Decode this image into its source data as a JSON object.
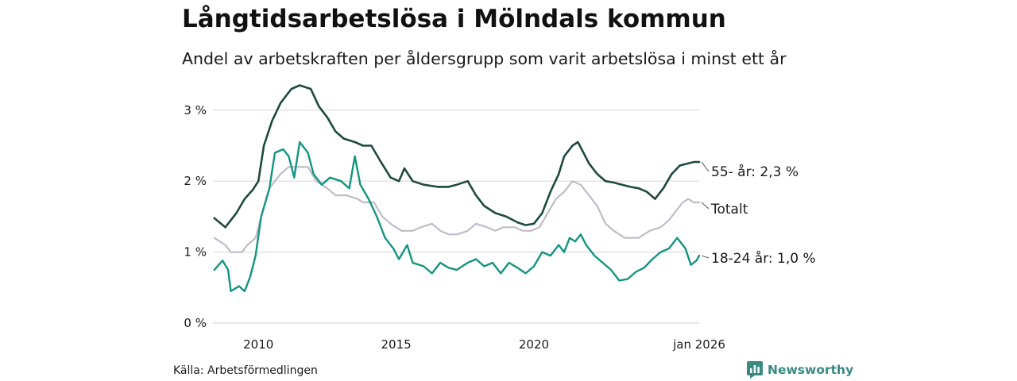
{
  "title": "Långtidsarbetslösa i Mölndals kommun",
  "subtitle": "Andel av arbetskraften per åldersgrupp som varit arbetslösa i minst ett år",
  "source": "Källa: Arbetsförmedlingen",
  "brand": "Newsworthy",
  "colors": {
    "series_55": "#1e4a3f",
    "series_total": "#c0bcc9",
    "series_18_24": "#149481",
    "grid": "#dcdcdc",
    "brand": "#3a8a80"
  },
  "chart_data": {
    "type": "line",
    "title": "Långtidsarbetslösa i Mölndals kommun",
    "xlabel": "",
    "ylabel": "",
    "xlim": [
      2008.35,
      2026.0
    ],
    "ylim": [
      0,
      3.3
    ],
    "grid": true,
    "y_ticks": [
      {
        "value": 0,
        "label": "0 %"
      },
      {
        "value": 1,
        "label": "1 %"
      },
      {
        "value": 2,
        "label": "2 %"
      },
      {
        "value": 3,
        "label": "3 %"
      }
    ],
    "x_ticks": [
      {
        "value": 2010,
        "label": "2010"
      },
      {
        "value": 2015,
        "label": "2015"
      },
      {
        "value": 2020,
        "label": "2020"
      },
      {
        "value": 2026,
        "label": "jan 2026"
      }
    ],
    "series": [
      {
        "key": "s55",
        "name": "55- år",
        "end_label": "55- år: 2,3 %",
        "points": [
          [
            2008.4,
            1.48
          ],
          [
            2008.8,
            1.35
          ],
          [
            2009.2,
            1.55
          ],
          [
            2009.5,
            1.75
          ],
          [
            2009.8,
            1.88
          ],
          [
            2010.0,
            2.0
          ],
          [
            2010.2,
            2.5
          ],
          [
            2010.5,
            2.85
          ],
          [
            2010.8,
            3.1
          ],
          [
            2011.2,
            3.3
          ],
          [
            2011.5,
            3.35
          ],
          [
            2011.9,
            3.3
          ],
          [
            2012.2,
            3.05
          ],
          [
            2012.5,
            2.9
          ],
          [
            2012.8,
            2.7
          ],
          [
            2013.1,
            2.6
          ],
          [
            2013.5,
            2.55
          ],
          [
            2013.8,
            2.5
          ],
          [
            2014.1,
            2.5
          ],
          [
            2014.4,
            2.3
          ],
          [
            2014.8,
            2.05
          ],
          [
            2015.1,
            2.0
          ],
          [
            2015.3,
            2.18
          ],
          [
            2015.6,
            2.0
          ],
          [
            2016.0,
            1.95
          ],
          [
            2016.5,
            1.92
          ],
          [
            2016.9,
            1.92
          ],
          [
            2017.2,
            1.95
          ],
          [
            2017.6,
            2.0
          ],
          [
            2017.9,
            1.8
          ],
          [
            2018.2,
            1.65
          ],
          [
            2018.6,
            1.55
          ],
          [
            2019.0,
            1.5
          ],
          [
            2019.4,
            1.42
          ],
          [
            2019.7,
            1.38
          ],
          [
            2020.0,
            1.4
          ],
          [
            2020.3,
            1.55
          ],
          [
            2020.6,
            1.85
          ],
          [
            2020.9,
            2.1
          ],
          [
            2021.1,
            2.35
          ],
          [
            2021.4,
            2.5
          ],
          [
            2021.6,
            2.55
          ],
          [
            2021.8,
            2.4
          ],
          [
            2022.0,
            2.25
          ],
          [
            2022.3,
            2.1
          ],
          [
            2022.6,
            2.0
          ],
          [
            2022.9,
            1.98
          ],
          [
            2023.2,
            1.95
          ],
          [
            2023.5,
            1.92
          ],
          [
            2023.8,
            1.9
          ],
          [
            2024.1,
            1.85
          ],
          [
            2024.4,
            1.75
          ],
          [
            2024.7,
            1.9
          ],
          [
            2025.0,
            2.1
          ],
          [
            2025.3,
            2.22
          ],
          [
            2025.6,
            2.25
          ],
          [
            2025.8,
            2.27
          ],
          [
            2026.0,
            2.27
          ]
        ]
      },
      {
        "key": "total",
        "name": "Totalt",
        "end_label": "Totalt",
        "points": [
          [
            2008.4,
            1.2
          ],
          [
            2008.8,
            1.1
          ],
          [
            2009.0,
            1.0
          ],
          [
            2009.4,
            1.0
          ],
          [
            2009.6,
            1.1
          ],
          [
            2009.9,
            1.2
          ],
          [
            2010.1,
            1.5
          ],
          [
            2010.4,
            1.9
          ],
          [
            2010.8,
            2.1
          ],
          [
            2011.1,
            2.2
          ],
          [
            2011.4,
            2.2
          ],
          [
            2011.8,
            2.2
          ],
          [
            2012.1,
            2.0
          ],
          [
            2012.5,
            1.9
          ],
          [
            2012.8,
            1.8
          ],
          [
            2013.2,
            1.8
          ],
          [
            2013.6,
            1.75
          ],
          [
            2013.8,
            1.7
          ],
          [
            2014.2,
            1.7
          ],
          [
            2014.5,
            1.5
          ],
          [
            2014.8,
            1.4
          ],
          [
            2015.2,
            1.3
          ],
          [
            2015.6,
            1.3
          ],
          [
            2015.9,
            1.35
          ],
          [
            2016.3,
            1.4
          ],
          [
            2016.6,
            1.3
          ],
          [
            2016.9,
            1.25
          ],
          [
            2017.2,
            1.25
          ],
          [
            2017.6,
            1.3
          ],
          [
            2017.9,
            1.4
          ],
          [
            2018.3,
            1.35
          ],
          [
            2018.6,
            1.3
          ],
          [
            2018.9,
            1.35
          ],
          [
            2019.3,
            1.35
          ],
          [
            2019.6,
            1.3
          ],
          [
            2019.9,
            1.3
          ],
          [
            2020.2,
            1.35
          ],
          [
            2020.5,
            1.55
          ],
          [
            2020.8,
            1.75
          ],
          [
            2021.1,
            1.85
          ],
          [
            2021.4,
            2.0
          ],
          [
            2021.7,
            1.95
          ],
          [
            2022.0,
            1.8
          ],
          [
            2022.3,
            1.65
          ],
          [
            2022.6,
            1.4
          ],
          [
            2022.9,
            1.3
          ],
          [
            2023.3,
            1.2
          ],
          [
            2023.8,
            1.2
          ],
          [
            2024.2,
            1.3
          ],
          [
            2024.6,
            1.35
          ],
          [
            2024.9,
            1.45
          ],
          [
            2025.2,
            1.6
          ],
          [
            2025.4,
            1.7
          ],
          [
            2025.6,
            1.75
          ],
          [
            2025.8,
            1.7
          ],
          [
            2026.0,
            1.7
          ]
        ]
      },
      {
        "key": "s1824",
        "name": "18-24 år",
        "end_label": "18-24 år: 1,0 %",
        "points": [
          [
            2008.4,
            0.75
          ],
          [
            2008.7,
            0.88
          ],
          [
            2008.9,
            0.75
          ],
          [
            2009.0,
            0.45
          ],
          [
            2009.3,
            0.52
          ],
          [
            2009.5,
            0.45
          ],
          [
            2009.7,
            0.65
          ],
          [
            2009.9,
            0.95
          ],
          [
            2010.1,
            1.5
          ],
          [
            2010.4,
            1.9
          ],
          [
            2010.6,
            2.4
          ],
          [
            2010.9,
            2.45
          ],
          [
            2011.1,
            2.35
          ],
          [
            2011.3,
            2.05
          ],
          [
            2011.5,
            2.55
          ],
          [
            2011.8,
            2.4
          ],
          [
            2012.0,
            2.1
          ],
          [
            2012.3,
            1.95
          ],
          [
            2012.6,
            2.05
          ],
          [
            2013.0,
            2.0
          ],
          [
            2013.3,
            1.9
          ],
          [
            2013.5,
            2.35
          ],
          [
            2013.7,
            1.95
          ],
          [
            2014.0,
            1.75
          ],
          [
            2014.3,
            1.5
          ],
          [
            2014.6,
            1.2
          ],
          [
            2014.9,
            1.05
          ],
          [
            2015.1,
            0.9
          ],
          [
            2015.4,
            1.1
          ],
          [
            2015.6,
            0.85
          ],
          [
            2016.0,
            0.8
          ],
          [
            2016.3,
            0.7
          ],
          [
            2016.6,
            0.85
          ],
          [
            2016.9,
            0.78
          ],
          [
            2017.2,
            0.75
          ],
          [
            2017.6,
            0.85
          ],
          [
            2017.9,
            0.9
          ],
          [
            2018.2,
            0.8
          ],
          [
            2018.5,
            0.85
          ],
          [
            2018.8,
            0.7
          ],
          [
            2019.1,
            0.85
          ],
          [
            2019.4,
            0.78
          ],
          [
            2019.7,
            0.7
          ],
          [
            2020.0,
            0.8
          ],
          [
            2020.3,
            1.0
          ],
          [
            2020.6,
            0.95
          ],
          [
            2020.9,
            1.1
          ],
          [
            2021.1,
            1.0
          ],
          [
            2021.3,
            1.2
          ],
          [
            2021.5,
            1.15
          ],
          [
            2021.7,
            1.25
          ],
          [
            2021.9,
            1.1
          ],
          [
            2022.2,
            0.95
          ],
          [
            2022.5,
            0.85
          ],
          [
            2022.8,
            0.75
          ],
          [
            2023.1,
            0.6
          ],
          [
            2023.4,
            0.62
          ],
          [
            2023.7,
            0.72
          ],
          [
            2024.0,
            0.78
          ],
          [
            2024.3,
            0.9
          ],
          [
            2024.6,
            1.0
          ],
          [
            2024.9,
            1.05
          ],
          [
            2025.2,
            1.2
          ],
          [
            2025.5,
            1.05
          ],
          [
            2025.7,
            0.82
          ],
          [
            2025.9,
            0.88
          ],
          [
            2026.0,
            0.95
          ]
        ]
      }
    ]
  }
}
